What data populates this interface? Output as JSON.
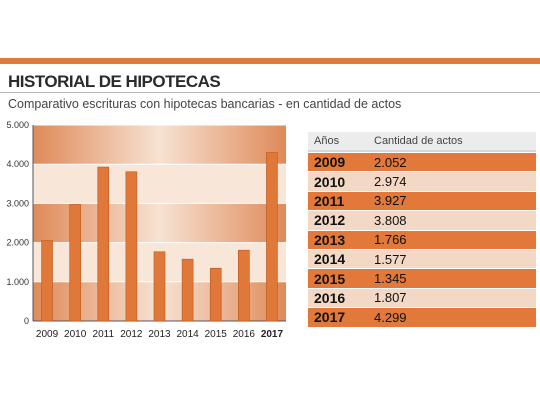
{
  "header": {
    "title": "HISTORIAL DE HIPOTECAS",
    "subtitle": "Comparativo escrituras con hipotecas bancarias -  en cantidad de actos"
  },
  "colors": {
    "accent": "#e07a3a",
    "bar": "#e0783a",
    "band_dark": "#df8a58",
    "band_light": "#f8e6d9",
    "row_dark": "#e2793a",
    "row_light": "#f3d9c5"
  },
  "chart_data": {
    "type": "bar",
    "title": "",
    "xlabel": "",
    "ylabel": "",
    "categories": [
      "2009",
      "2010",
      "2011",
      "2012",
      "2013",
      "2014",
      "2015",
      "2016",
      "2017"
    ],
    "values": [
      2052,
      2974,
      3927,
      3808,
      1766,
      1577,
      1345,
      1807,
      4299
    ],
    "ylim": [
      0,
      5000
    ],
    "yticks": [
      0,
      1000,
      2000,
      3000,
      4000,
      5000
    ],
    "ytick_labels": [
      "0",
      "1.000",
      "2.000",
      "3.000",
      "4.000",
      "5.000"
    ],
    "highlight_category": "2017",
    "grid": true
  },
  "table": {
    "headers": [
      "Años",
      "Cantidad de actos"
    ],
    "rows": [
      {
        "year": "2009",
        "value": "2.052"
      },
      {
        "year": "2010",
        "value": "2.974"
      },
      {
        "year": "2011",
        "value": "3.927"
      },
      {
        "year": "2012",
        "value": "3.808"
      },
      {
        "year": "2013",
        "value": "1.766"
      },
      {
        "year": "2014",
        "value": "1.577"
      },
      {
        "year": "2015",
        "value": "1.345"
      },
      {
        "year": "2016",
        "value": "1.807"
      },
      {
        "year": "2017",
        "value": "4.299"
      }
    ]
  }
}
